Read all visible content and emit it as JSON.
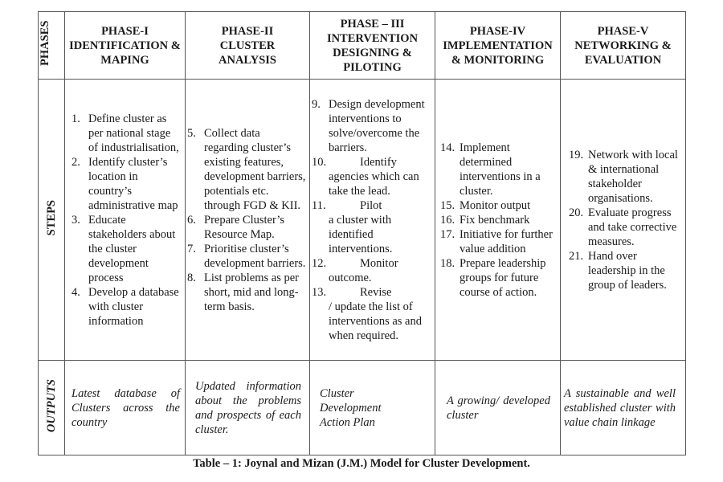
{
  "header": {
    "corner": "PHASES",
    "phases": [
      "PHASE-I IDENTIFICATION & MAPING",
      "PHASE-II CLUSTER ANALYSIS",
      "PHASE – III INTERVENTION DESIGNING & PILOTING",
      "PHASE-IV IMPLEMENTATION & MONITORING",
      "PHASE-V NETWORKING & EVALUATION"
    ]
  },
  "steps": {
    "label": "STEPS",
    "phase1": [
      {
        "n": "1.",
        "t": "Define cluster as per national stage of industrialisation,"
      },
      {
        "n": "2.",
        "t": "Identify cluster’s location in country’s administrative map"
      },
      {
        "n": "3.",
        "t": "Educate stakeholders about the cluster development process"
      },
      {
        "n": "4.",
        "t": "Develop a database with cluster information"
      }
    ],
    "phase2": [
      {
        "n": "5.",
        "t": "Collect data regarding cluster’s existing features, development barriers, potentials etc. through FGD & KII."
      },
      {
        "n": "6.",
        "t": "Prepare Cluster’s Resource Map."
      },
      {
        "n": "7.",
        "t": "Prioritise cluster’s development barriers."
      },
      {
        "n": "8.",
        "t": "List problems as per short, mid and long-term basis."
      }
    ],
    "phase3": [
      {
        "n": "9.",
        "t": "Design development interventions to solve/overcome the barriers."
      },
      {
        "n": "10.",
        "t": "Identify agencies which can take the lead."
      },
      {
        "n": "11.",
        "t": "Pilot a cluster with identified interventions."
      },
      {
        "n": "12.",
        "t": "Monitor outcome."
      },
      {
        "n": "13.",
        "t": "Revise / update the list of interventions as and when required."
      }
    ],
    "phase4": [
      {
        "n": "14.",
        "t": "Implement determined interventions in a cluster."
      },
      {
        "n": "15.",
        "t": "Monitor output"
      },
      {
        "n": "16.",
        "t": "Fix benchmark"
      },
      {
        "n": "17.",
        "t": "Initiative for further value addition"
      },
      {
        "n": "18.",
        "t": "Prepare leadership groups for future course of action."
      }
    ],
    "phase5": [
      {
        "n": "19.",
        "t": "Network with local & international stakeholder organisations."
      },
      {
        "n": "20.",
        "t": "Evaluate progress and take corrective measures."
      },
      {
        "n": "21.",
        "t": "Hand over leadership in the group of leaders."
      }
    ]
  },
  "outputs": {
    "label": "OUTPUTS",
    "values": [
      "Latest database of Clusters across the country",
      "Updated information about the problems and prospects of each cluster.",
      "Cluster Development Action Plan",
      "A growing/ developed cluster",
      "A sustainable and well established cluster with value chain linkage"
    ]
  },
  "caption": "Table – 1: Joynal and Mizan (J.M.) Model for Cluster Development."
}
